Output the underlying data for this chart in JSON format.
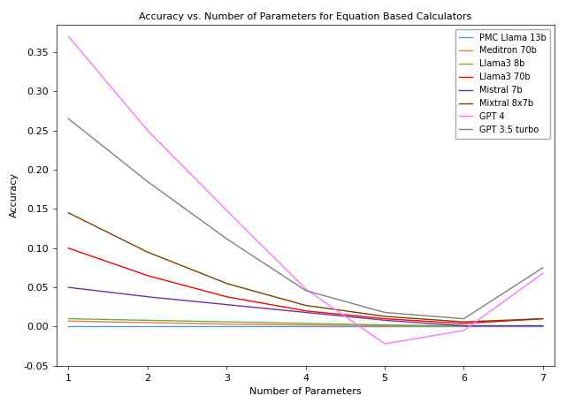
{
  "title": "Accuracy vs. Number of Parameters for Equation Based Calculators",
  "xlabel": "Number of Parameters",
  "ylabel": "Accuracy",
  "x_ticks": [
    1,
    2,
    3,
    4,
    5,
    6,
    7
  ],
  "series": [
    {
      "label": "PMC Llama 13b",
      "color": "#5b9bd5",
      "points": [
        [
          1,
          0.001
        ],
        [
          2,
          0.001
        ],
        [
          3,
          0.001
        ],
        [
          4,
          0.001
        ],
        [
          5,
          0.001
        ],
        [
          6,
          0.001
        ],
        [
          7,
          0.001
        ]
      ]
    },
    {
      "label": "Meditron 70b",
      "color": "#ed7d31",
      "points": [
        [
          1,
          0.007
        ],
        [
          2,
          0.005
        ],
        [
          3,
          0.003
        ],
        [
          4,
          0.002
        ],
        [
          5,
          0.001
        ],
        [
          6,
          0.001
        ],
        [
          7,
          0.001
        ]
      ]
    },
    {
      "label": "Llama3 8b",
      "color": "#70ad47",
      "points": [
        [
          1,
          0.01
        ],
        [
          2,
          0.008
        ],
        [
          3,
          0.006
        ],
        [
          4,
          0.004
        ],
        [
          5,
          0.002
        ],
        [
          6,
          0.001
        ],
        [
          7,
          0.001
        ]
      ]
    },
    {
      "label": "Llama3 70b",
      "color": "#ff0000",
      "points": [
        [
          1,
          0.1
        ],
        [
          2,
          0.065
        ],
        [
          3,
          0.038
        ],
        [
          4,
          0.02
        ],
        [
          5,
          0.01
        ],
        [
          6,
          0.004
        ],
        [
          7,
          0.01
        ]
      ]
    },
    {
      "label": "Mistral 7b",
      "color": "#7030a0",
      "points": [
        [
          1,
          0.05
        ],
        [
          2,
          0.038
        ],
        [
          3,
          0.028
        ],
        [
          4,
          0.018
        ],
        [
          5,
          0.008
        ],
        [
          6,
          0.001
        ],
        [
          7,
          0.001
        ]
      ]
    },
    {
      "label": "Mixtral 8x7b",
      "color": "#7b3f00",
      "points": [
        [
          1,
          0.145
        ],
        [
          2,
          0.095
        ],
        [
          3,
          0.055
        ],
        [
          4,
          0.027
        ],
        [
          5,
          0.013
        ],
        [
          6,
          0.006
        ],
        [
          7,
          0.01
        ]
      ]
    },
    {
      "label": "GPT 4",
      "color": "#ff77ff",
      "points": [
        [
          1,
          0.37
        ],
        [
          2,
          0.25
        ],
        [
          3,
          0.148
        ],
        [
          4,
          0.048
        ],
        [
          5,
          -0.022
        ],
        [
          6,
          -0.005
        ],
        [
          7,
          0.068
        ]
      ]
    },
    {
      "label": "GPT 3.5 turbo",
      "color": "#808080",
      "points": [
        [
          1,
          0.265
        ],
        [
          2,
          0.185
        ],
        [
          3,
          0.112
        ],
        [
          4,
          0.046
        ],
        [
          5,
          0.018
        ],
        [
          6,
          0.01
        ],
        [
          7,
          0.075
        ]
      ]
    }
  ],
  "ylim": [
    -0.05,
    0.385
  ],
  "xlim": [
    0.85,
    7.15
  ],
  "figsize": [
    6.4,
    4.65
  ],
  "dpi": 100,
  "title_fontsize": 8,
  "label_fontsize": 8,
  "tick_fontsize": 8,
  "legend_fontsize": 7
}
